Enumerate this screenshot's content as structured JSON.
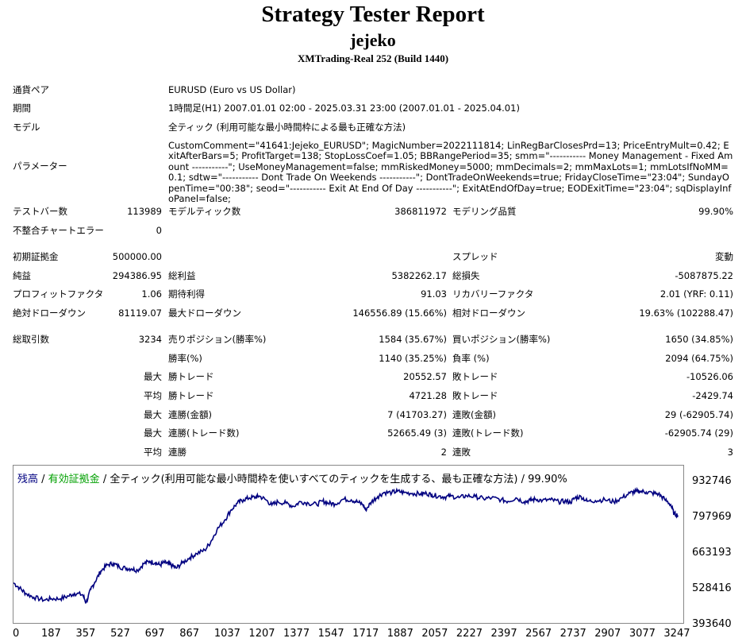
{
  "header": {
    "title": "Strategy Tester Report",
    "subtitle": "jejeko",
    "server": "XMTrading-Real 252 (Build 1440)"
  },
  "info": {
    "symbol_label": "通貨ペア",
    "symbol_value": "EURUSD (Euro vs US Dollar)",
    "period_label": "期間",
    "period_value": "1時間足(H1) 2007.01.01 02:00 - 2025.03.31 23:00 (2007.01.01 - 2025.04.01)",
    "model_label": "モデル",
    "model_value": "全ティック (利用可能な最小時間枠による最も正確な方法)",
    "params_label": "パラメーター",
    "params_value": "CustomComment=\"41641:Jejeko_EURUSD\"; MagicNumber=2022111814; LinRegBarClosesPrd=13; PriceEntryMult=0.42; ExitAfterBars=5; ProfitTarget=138; StopLossCoef=1.05; BBRangePeriod=35; smm=\"----------- Money Management - Fixed Amount -----------\"; UseMoneyManagement=false; mmRiskedMoney=5000; mmDecimals=2; mmMaxLots=1; mmLotsIfNoMM=0.1; sdtw=\"----------- Dont Trade On Weekends -----------\"; DontTradeOnWeekends=true; FridayCloseTime=\"23:04\"; SundayOpenTime=\"00:38\"; seod=\"----------- Exit At End Of Day -----------\"; ExitAtEndOfDay=true; EODExitTime=\"23:04\"; sqDisplayInfoPanel=false;"
  },
  "stats": {
    "bars_label": "テストバー数",
    "bars_value": "113989",
    "ticks_label": "モデルティック数",
    "ticks_value": "386811972",
    "quality_label": "モデリング品質",
    "quality_value": "99.90%",
    "mismatch_label": "不整合チャートエラー",
    "mismatch_value": "0",
    "deposit_label": "初期証拠金",
    "deposit_value": "500000.00",
    "spread_label": "スプレッド",
    "spread_value": "変動",
    "net_label": "純益",
    "net_value": "294386.95",
    "gross_profit_label": "総利益",
    "gross_profit_value": "5382262.17",
    "gross_loss_label": "総損失",
    "gross_loss_value": "-5087875.22",
    "pf_label": "プロフィットファクタ",
    "pf_value": "1.06",
    "expected_label": "期待利得",
    "expected_value": "91.03",
    "recovery_label": "リカバリーファクタ",
    "recovery_value": "2.01 (YRF: 0.11)",
    "abs_dd_label": "絶対ドローダウン",
    "abs_dd_value": "81119.07",
    "max_dd_label": "最大ドローダウン",
    "max_dd_value": "146556.89 (15.66%)",
    "rel_dd_label": "相対ドローダウン",
    "rel_dd_value": "19.63% (102288.47)",
    "trades_label": "総取引数",
    "trades_value": "3234",
    "short_label": "売りポジション(勝率%)",
    "short_value": "1584 (35.67%)",
    "long_label": "買いポジション(勝率%)",
    "long_value": "1650 (34.85%)",
    "win_rate_label": "勝率(%)",
    "win_rate_value": "1140 (35.25%)",
    "loss_rate_label": "負率 (%)",
    "loss_rate_value": "2094 (64.75%)",
    "max1": "最大",
    "largest_win_label": "勝トレード",
    "largest_win_value": "20552.57",
    "largest_loss_label": "敗トレード",
    "largest_loss_value": "-10526.06",
    "avg1": "平均",
    "avg_win_label": "勝トレード",
    "avg_win_value": "4721.28",
    "avg_loss_label": "敗トレード",
    "avg_loss_value": "-2429.74",
    "max2": "最大",
    "cons_win_amt_label": "連勝(金額)",
    "cons_win_amt_value": "7 (41703.27)",
    "cons_loss_amt_label": "連敗(金額)",
    "cons_loss_amt_value": "29 (-62905.74)",
    "max3": "最大",
    "cons_win_cnt_label": "連勝(トレード数)",
    "cons_win_cnt_value": "52665.49 (3)",
    "cons_loss_cnt_label": "連敗(トレード数)",
    "cons_loss_cnt_value": "-62905.74 (29)",
    "avg2": "平均",
    "avg_cons_win_label": "連勝",
    "avg_cons_win_value": "2",
    "avg_cons_loss_label": "連敗",
    "avg_cons_loss_value": "3"
  },
  "chart_data": {
    "type": "line",
    "legend": {
      "balance": "残高",
      "sep1": " / ",
      "equity": "有効証拠金",
      "sep2": " / ",
      "desc": "全ティック(利用可能な最小時間枠を使いすべてのティックを生成する、最も正確な方法) / 99.90%"
    },
    "y_ticks": [
      "932746",
      "797969",
      "663193",
      "528416",
      "393640"
    ],
    "x_ticks": [
      "0",
      "187",
      "357",
      "527",
      "697",
      "867",
      "1037",
      "1207",
      "1377",
      "1547",
      "1717",
      "1887",
      "2057",
      "2227",
      "2397",
      "2567",
      "2737",
      "2907",
      "3077",
      "3247"
    ],
    "ylim": [
      393640,
      932746
    ],
    "xlim": [
      0,
      3300
    ],
    "series": [
      {
        "color": "#000080",
        "x": [
          0,
          30,
          60,
          100,
          150,
          187,
          230,
          270,
          300,
          340,
          357,
          380,
          400,
          430,
          460,
          490,
          520,
          550,
          580,
          610,
          640,
          670,
          697,
          720,
          740,
          760,
          780,
          800,
          830,
          867,
          900,
          940,
          970,
          1000,
          1037,
          1070,
          1100,
          1130,
          1160,
          1190,
          1207,
          1240,
          1270,
          1300,
          1340,
          1377,
          1410,
          1450,
          1490,
          1520,
          1547,
          1580,
          1620,
          1660,
          1690,
          1717,
          1730,
          1760,
          1790,
          1820,
          1860,
          1887,
          1920,
          1960,
          2000,
          2030,
          2057,
          2090,
          2120,
          2150,
          2190,
          2227,
          2270,
          2310,
          2350,
          2397,
          2430,
          2470,
          2510,
          2540,
          2567,
          2600,
          2640,
          2680,
          2710,
          2737,
          2760,
          2790,
          2820,
          2860,
          2907,
          2950,
          2990,
          3030,
          3060,
          3077,
          3110,
          3140,
          3170,
          3200,
          3230,
          3247,
          3265
        ],
        "y": [
          545000,
          525000,
          505000,
          490000,
          480000,
          485000,
          485000,
          495000,
          505000,
          500000,
          470000,
          520000,
          548000,
          590000,
          612000,
          618000,
          605000,
          600000,
          598000,
          592000,
          617000,
          626000,
          620000,
          612000,
          622000,
          617000,
          610000,
          600000,
          620000,
          640000,
          655000,
          668000,
          700000,
          745000,
          780000,
          820000,
          845000,
          858000,
          865000,
          868000,
          872000,
          858000,
          838000,
          850000,
          845000,
          833000,
          851000,
          845000,
          840000,
          853000,
          845000,
          842000,
          860000,
          858000,
          850000,
          840000,
          820000,
          850000,
          870000,
          885000,
          885000,
          890000,
          885000,
          882000,
          880000,
          882000,
          876000,
          872000,
          868000,
          872000,
          866000,
          873000,
          870000,
          862000,
          865000,
          858000,
          852000,
          865000,
          850000,
          856000,
          860000,
          855000,
          858000,
          850000,
          853000,
          848000,
          865000,
          870000,
          852000,
          855000,
          858000,
          850000,
          865000,
          883000,
          890000,
          890000,
          887000,
          883000,
          880000,
          860000,
          840000,
          805000,
          800000
        ]
      }
    ]
  }
}
